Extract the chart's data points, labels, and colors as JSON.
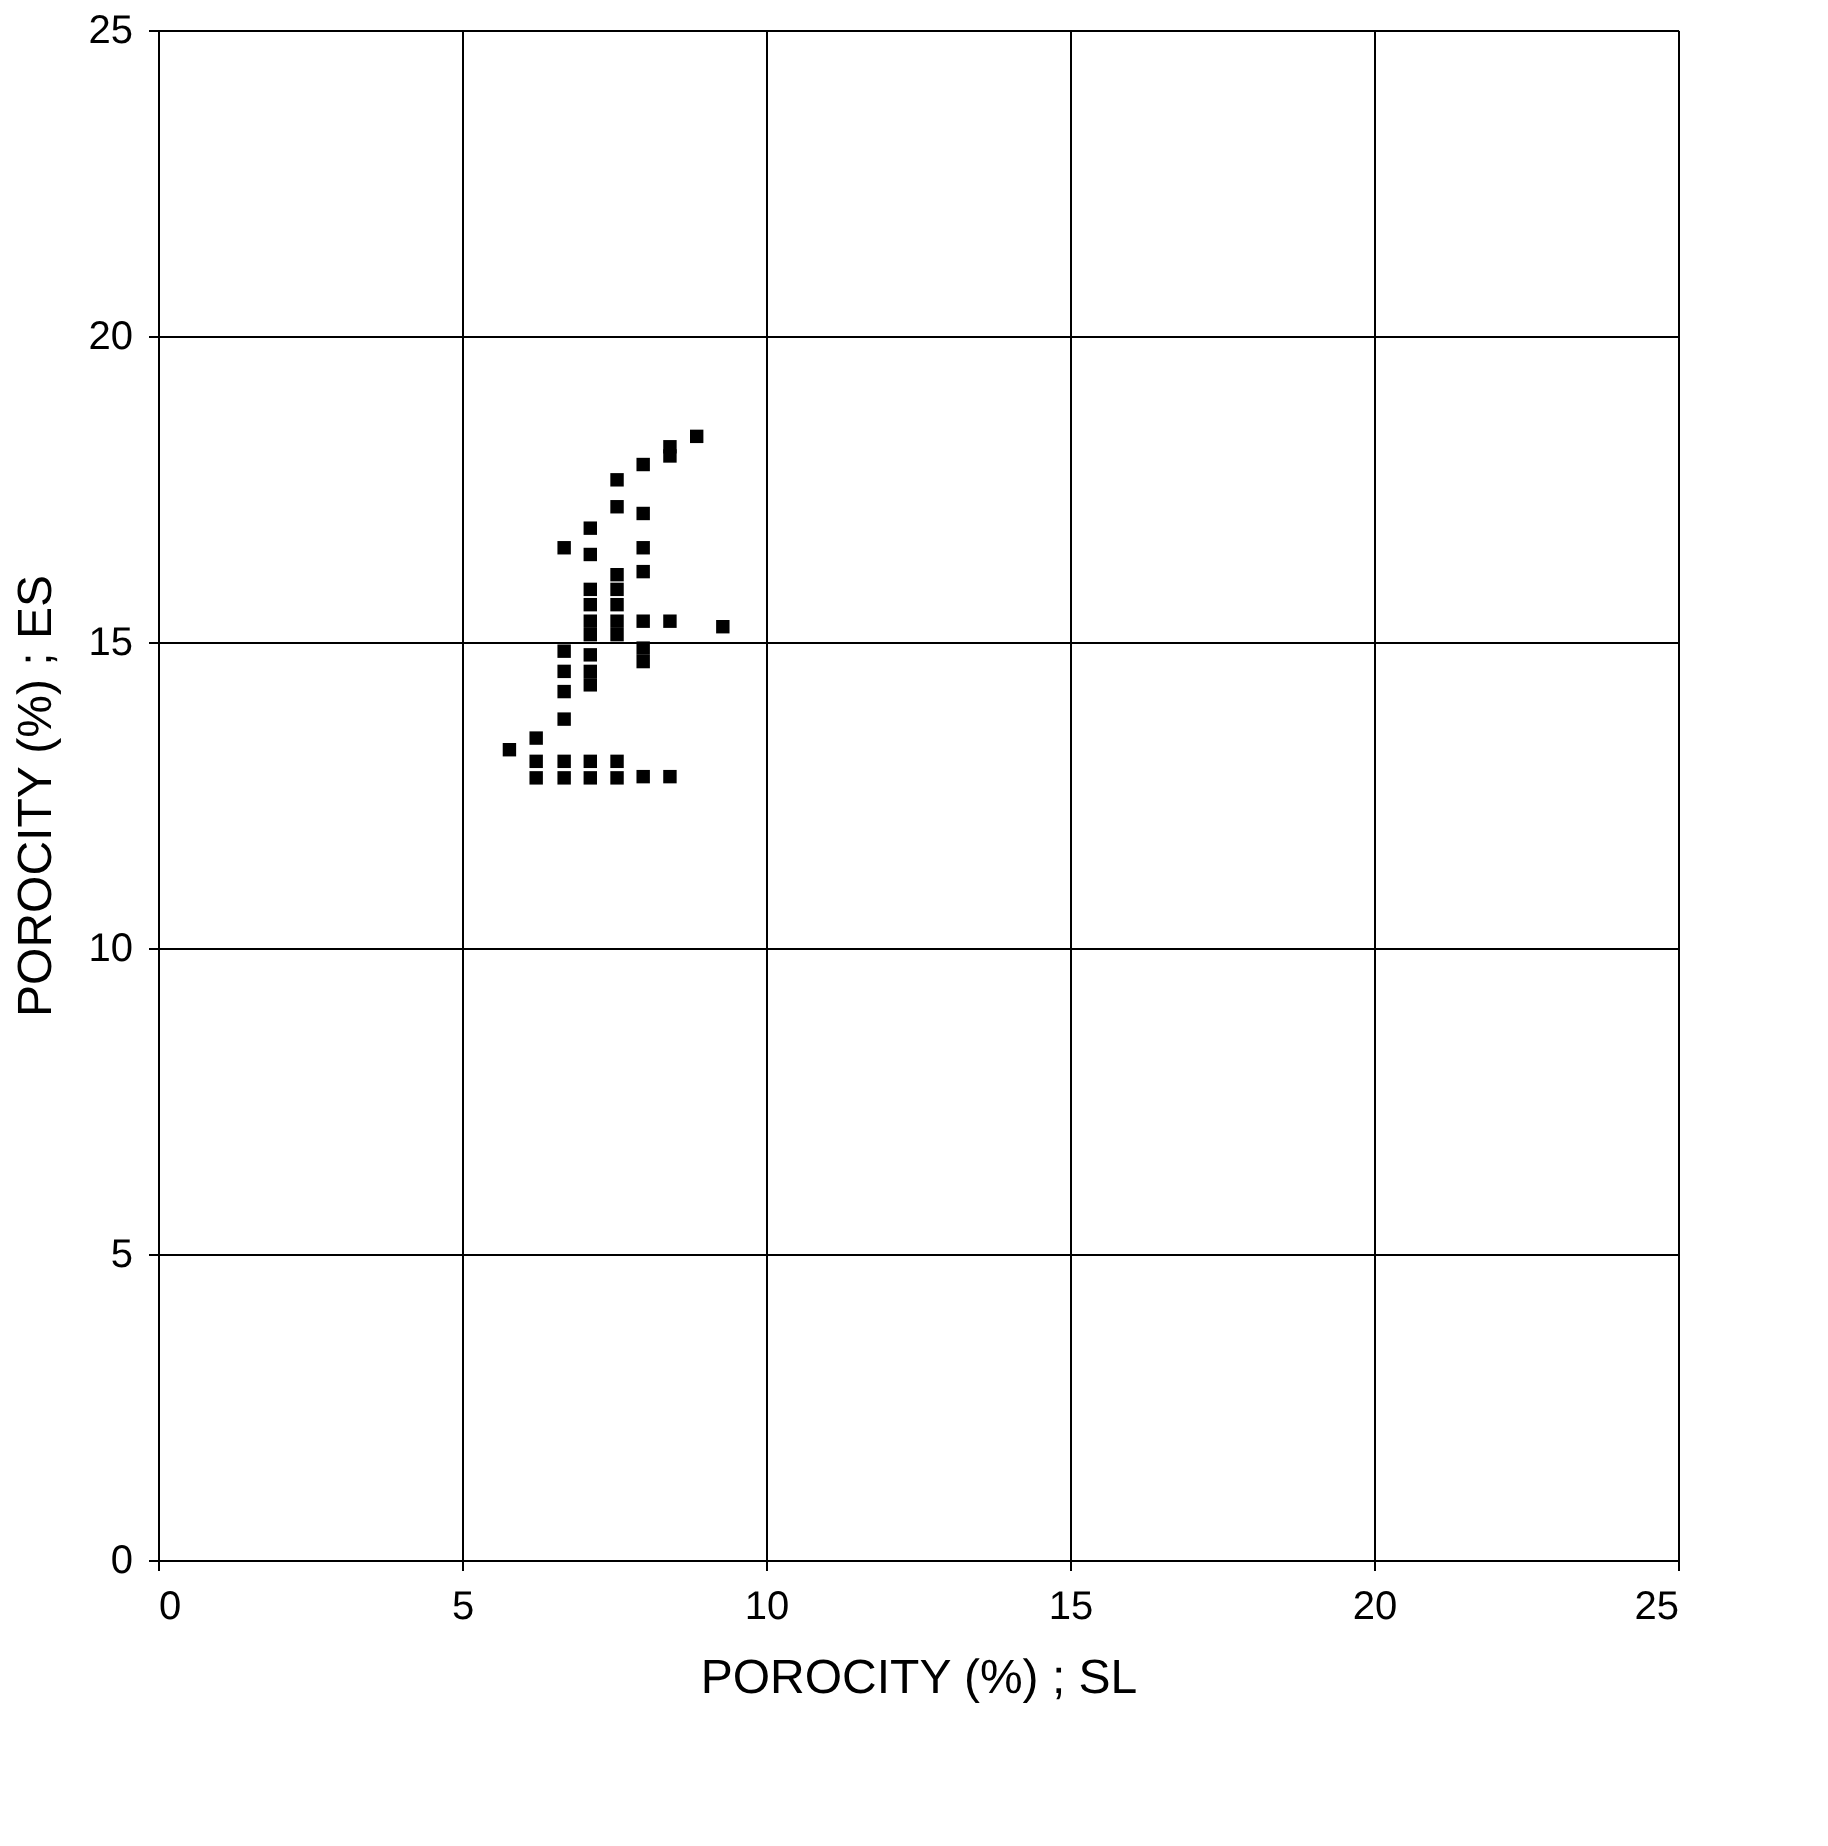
{
  "chart_data": {
    "type": "scatter",
    "xlabel": "POROCITY (%) ; SL",
    "ylabel": "POROCITY (%) ; ES",
    "x": [
      8.86,
      8.42,
      8.42,
      7.98,
      7.55,
      7.55,
      7.98,
      7.11,
      6.68,
      7.11,
      7.98,
      7.55,
      7.98,
      7.11,
      7.55,
      7.11,
      7.11,
      7.11,
      7.55,
      7.55,
      7.55,
      7.98,
      7.98,
      7.98,
      8.42,
      9.29,
      6.68,
      6.68,
      6.68,
      7.11,
      7.11,
      7.11,
      6.68,
      5.78,
      6.22,
      6.22,
      6.22,
      6.68,
      6.68,
      7.11,
      7.11,
      7.55,
      7.55,
      7.98,
      8.42
    ],
    "series": [
      {
        "color": "#000000",
        "values": [
          18.36,
          18.19,
          18.04,
          17.9,
          17.65,
          17.21,
          17.1,
          16.86,
          16.54,
          16.43,
          16.54,
          16.1,
          16.15,
          15.86,
          15.86,
          15.61,
          15.34,
          15.12,
          15.61,
          15.34,
          15.12,
          15.34,
          14.9,
          14.68,
          15.34,
          15.25,
          14.85,
          14.52,
          14.19,
          14.79,
          14.52,
          14.3,
          13.74,
          13.24,
          13.43,
          13.05,
          12.78,
          13.05,
          12.78,
          13.05,
          12.78,
          13.05,
          12.78,
          12.8,
          12.8
        ]
      }
    ],
    "xlim": [
      0,
      25
    ],
    "ylim": [
      0,
      25
    ],
    "xticks": [
      0,
      5,
      10,
      15,
      20,
      25
    ],
    "yticks": [
      0,
      5,
      10,
      15,
      20,
      25
    ],
    "grid": true,
    "marker": "square"
  }
}
